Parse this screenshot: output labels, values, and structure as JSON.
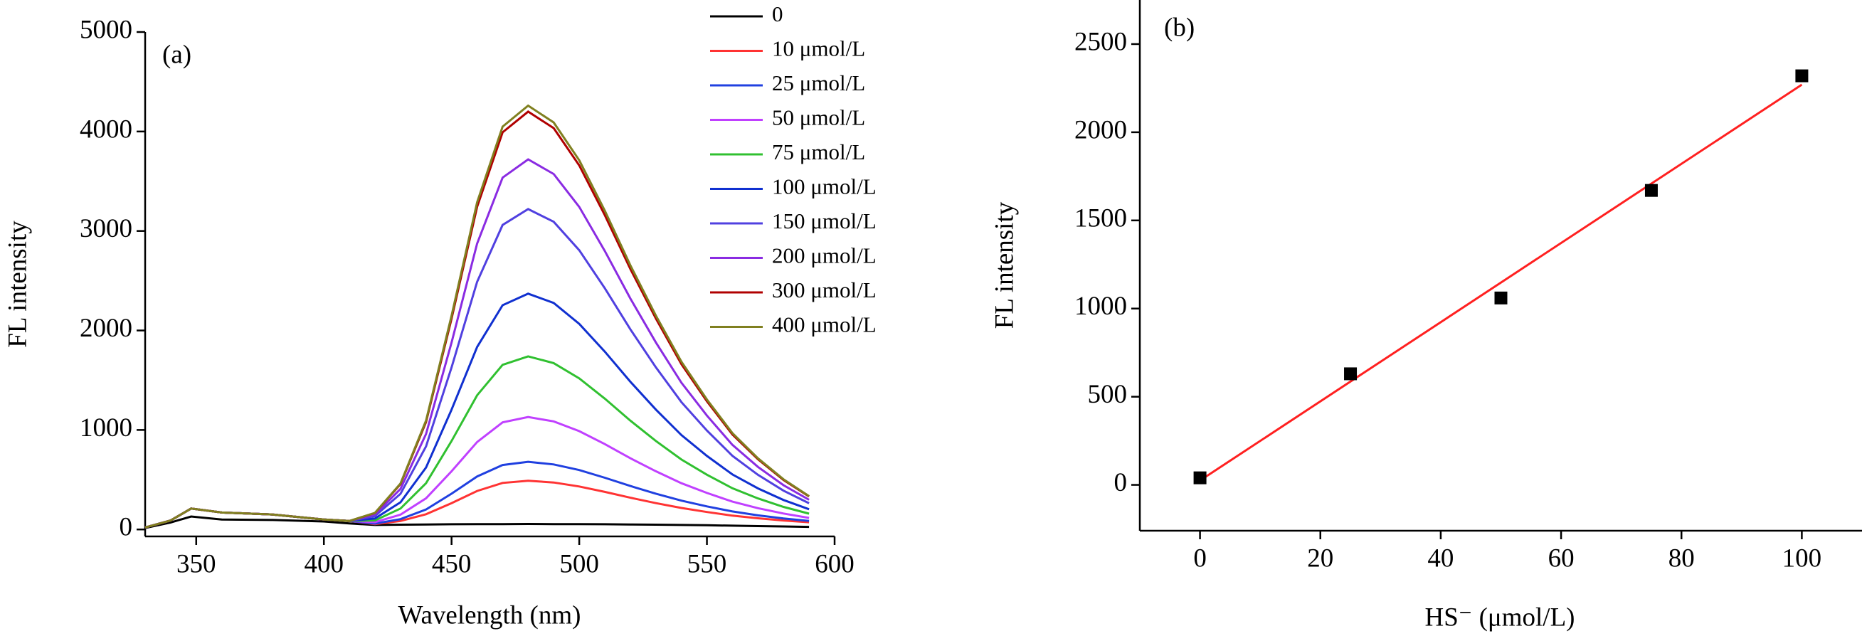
{
  "chart_data": [
    {
      "type": "line",
      "title": "(a)",
      "xlabel": "Wavelength (nm)",
      "ylabel": "FL intensity",
      "legend": "upper right",
      "x": [
        330,
        340,
        348,
        360,
        380,
        400,
        410,
        420,
        430,
        440,
        450,
        460,
        470,
        480,
        490,
        500,
        510,
        520,
        530,
        540,
        550,
        560,
        570,
        580,
        590
      ],
      "xlim": [
        330,
        600
      ],
      "xticks": [
        350,
        400,
        450,
        500,
        550,
        600
      ],
      "ylim": [
        -70,
        5000
      ],
      "yticks": [
        0,
        1000,
        2000,
        3000,
        4000,
        5000
      ],
      "series": [
        {
          "name": "0",
          "color": "#000000",
          "values": [
            15,
            70,
            130,
            100,
            95,
            80,
            60,
            45,
            48,
            50,
            52,
            53,
            54,
            55,
            54,
            53,
            52,
            50,
            48,
            45,
            42,
            38,
            34,
            30,
            26
          ]
        },
        {
          "name": "10 μmol/L",
          "color": "#ff3333",
          "values": [
            20,
            90,
            210,
            170,
            150,
            100,
            85,
            54,
            85,
            153,
            265,
            387,
            468,
            490,
            472,
            432,
            378,
            319,
            265,
            216,
            175,
            139,
            112,
            90,
            72
          ]
        },
        {
          "name": "25 μmol/L",
          "color": "#2040e0",
          "values": [
            20,
            90,
            210,
            170,
            150,
            100,
            85,
            59,
            104,
            200,
            360,
            533,
            648,
            680,
            654,
            597,
            520,
            437,
            360,
            290,
            232,
            181,
            142,
            110,
            85
          ]
        },
        {
          "name": "50 μmol/L",
          "color": "#c040ff",
          "values": [
            20,
            90,
            210,
            170,
            150,
            100,
            85,
            73,
            149,
            313,
            585,
            879,
            1076,
            1130,
            1086,
            988,
            858,
            716,
            585,
            465,
            367,
            280,
            214,
            160,
            116
          ]
        },
        {
          "name": "75 μmol/L",
          "color": "#30c030",
          "values": [
            20,
            90,
            210,
            170,
            150,
            100,
            85,
            91,
            210,
            465,
            890,
            1349,
            1655,
            1740,
            1672,
            1519,
            1315,
            1094,
            890,
            703,
            550,
            414,
            312,
            227,
            159
          ]
        },
        {
          "name": "100 μmol/L",
          "color": "#1030d0",
          "values": [
            20,
            90,
            210,
            170,
            150,
            100,
            85,
            110,
            273,
            623,
            1205,
            1834,
            2254,
            2370,
            2277,
            2067,
            1788,
            1485,
            1205,
            949,
            739,
            553,
            413,
            296,
            203
          ]
        },
        {
          "name": "150 μmol/L",
          "color": "#5040e0",
          "values": [
            20,
            90,
            210,
            170,
            150,
            100,
            85,
            135,
            358,
            835,
            1630,
            2489,
            3061,
            3220,
            3093,
            2807,
            2425,
            2012,
            1630,
            1280,
            994,
            740,
            549,
            390,
            263
          ]
        },
        {
          "name": "200 μmol/L",
          "color": "#8a2be2",
          "values": [
            20,
            90,
            210,
            170,
            150,
            100,
            85,
            150,
            408,
            960,
            1880,
            2874,
            3536,
            3720,
            3573,
            3242,
            2800,
            2322,
            1880,
            1475,
            1144,
            850,
            629,
            445,
            298
          ]
        },
        {
          "name": "300 μmol/L",
          "color": "#b00000",
          "values": [
            20,
            90,
            210,
            170,
            150,
            100,
            85,
            165,
            456,
            1080,
            2120,
            3243,
            3992,
            4200,
            4034,
            3659,
            3160,
            2619,
            2120,
            1662,
            1288,
            955,
            706,
            498,
            331
          ]
        },
        {
          "name": "400 μmol/L",
          "color": "#808020",
          "values": [
            20,
            90,
            210,
            170,
            150,
            100,
            85,
            167,
            462,
            1095,
            2150,
            3289,
            4049,
            4260,
            4091,
            3711,
            3205,
            2656,
            2150,
            1686,
            1306,
            968,
            715,
            504,
            335
          ]
        }
      ]
    },
    {
      "type": "scatter",
      "title": "(b)",
      "xlabel": "HS⁻ (μmol/L)",
      "ylabel": "FL intensity",
      "x": [
        0,
        25,
        50,
        75,
        100
      ],
      "values": [
        40,
        630,
        1060,
        1670,
        2320
      ],
      "color": "#000000",
      "fit": {
        "x": [
          0,
          100
        ],
        "y": [
          25,
          2270
        ],
        "color": "#ff2020"
      },
      "xlim": [
        -10,
        110
      ],
      "xticks": [
        0,
        20,
        40,
        60,
        80,
        100
      ],
      "ylim": [
        -260,
        2750
      ],
      "yticks": [
        0,
        500,
        1000,
        1500,
        2000,
        2500
      ]
    }
  ]
}
